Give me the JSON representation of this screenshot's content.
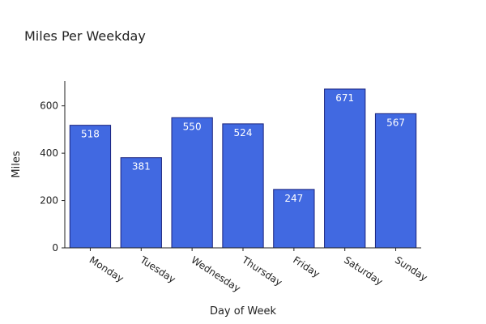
{
  "chart_data": {
    "type": "bar",
    "title": "Miles Per Weekday",
    "xlabel": "Day of Week",
    "ylabel": "Miles",
    "categories": [
      "Monday",
      "Tuesday",
      "Wednesday",
      "Thursday",
      "Friday",
      "Saturday",
      "Sunday"
    ],
    "values": [
      518,
      381,
      550,
      524,
      247,
      671,
      567
    ],
    "value_labels": [
      "518",
      "381",
      "550",
      "524",
      "247",
      "671",
      "567"
    ],
    "yticks": [
      0,
      200,
      400,
      600
    ],
    "ytick_labels": [
      "0",
      "200",
      "400",
      "600"
    ],
    "ylim": [
      0,
      705
    ],
    "grid": false,
    "colors": {
      "bar_fill": "#4169e1",
      "bar_edge": "#1a237e",
      "axis": "#222222",
      "data_label": "#ffffff"
    }
  }
}
